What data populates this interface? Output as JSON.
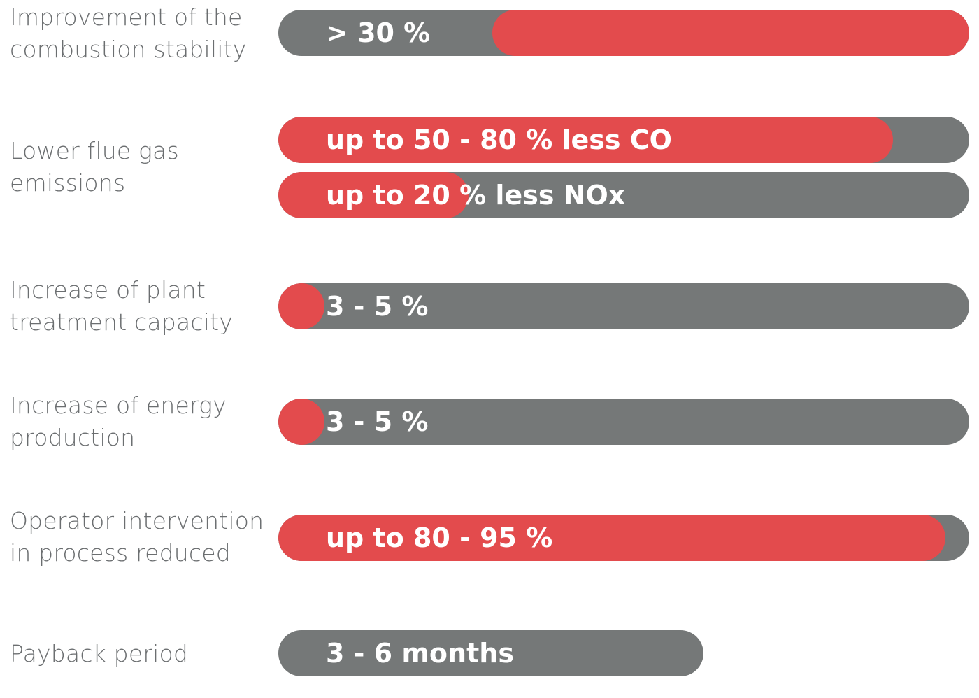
{
  "chart_data": {
    "type": "bar",
    "orientation": "horizontal",
    "colors": {
      "track": "#757878",
      "fill": "#e34b4d",
      "label_text": "#6b6e70",
      "bar_text": "#ffffff"
    },
    "rows": [
      {
        "label_lines": [
          "Improvement of the",
          "combustion stability"
        ],
        "bars": [
          {
            "text": "> 30 %",
            "fill_from": 0.31,
            "fill_to": 1.0
          }
        ]
      },
      {
        "label_lines": [
          "Lower flue gas",
          "emissions"
        ],
        "bars": [
          {
            "text": "up to 50 - 80 % less CO",
            "fill_from": 0.0,
            "fill_to": 0.89
          },
          {
            "text": "up to 20 % less NOx",
            "fill_from": 0.0,
            "fill_to": 0.275
          }
        ]
      },
      {
        "label_lines": [
          "Increase of plant",
          "treatment capacity"
        ],
        "bars": [
          {
            "text": "3 - 5 %",
            "fill_from": 0.0,
            "fill_to": 0.067
          }
        ]
      },
      {
        "label_lines": [
          "Increase of energy",
          "production"
        ],
        "bars": [
          {
            "text": "3 - 5 %",
            "fill_from": 0.0,
            "fill_to": 0.067
          }
        ]
      },
      {
        "label_lines": [
          "Operator intervention",
          "in process reduced"
        ],
        "bars": [
          {
            "text": "up to 80 - 95 %",
            "fill_from": 0.0,
            "fill_to": 0.966
          }
        ]
      },
      {
        "label_lines": [
          "Payback period"
        ],
        "bars": [
          {
            "text": "3 - 6 months",
            "fill_from": 0.0,
            "fill_to": 0.0,
            "track_extent": 0.615
          }
        ]
      }
    ]
  }
}
